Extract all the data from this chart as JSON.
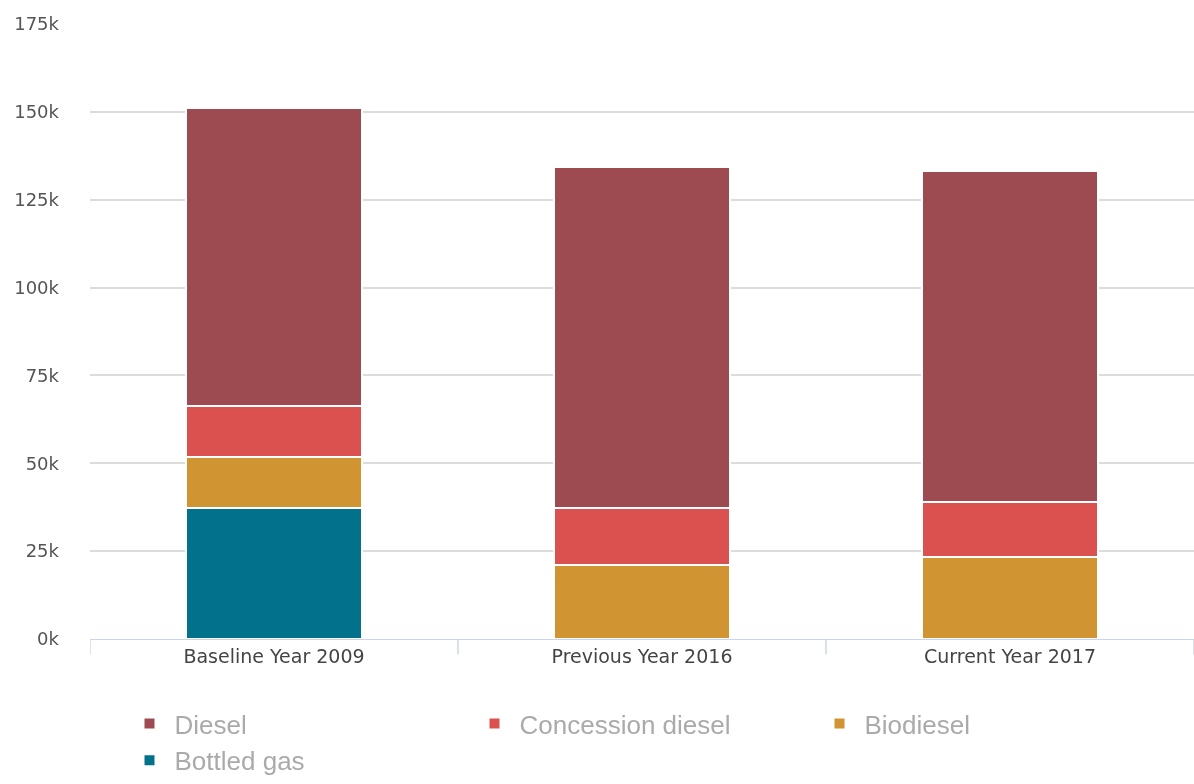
{
  "chart_data": {
    "type": "bar",
    "stacked": true,
    "categories": [
      "Baseline Year 2009",
      "Previous Year 2016",
      "Current Year 2017"
    ],
    "series": [
      {
        "name": "Bottled gas",
        "color": "#02718b",
        "values": [
          37400,
          null,
          null
        ]
      },
      {
        "name": "Biodiesel",
        "color": "#d09433",
        "values": [
          14500,
          21000,
          23200
        ]
      },
      {
        "name": "Concession diesel",
        "color": "#da5150",
        "values": [
          14400,
          16400,
          15800
        ]
      },
      {
        "name": "Diesel",
        "color": "#9e4a51",
        "values": [
          84900,
          96900,
          94200
        ]
      }
    ],
    "ylim": [
      0,
      175000
    ],
    "yticks": [
      {
        "value": 0,
        "label": "0k"
      },
      {
        "value": 25000,
        "label": "25k"
      },
      {
        "value": 50000,
        "label": "50k"
      },
      {
        "value": 75000,
        "label": "75k"
      },
      {
        "value": 100000,
        "label": "100k"
      },
      {
        "value": 125000,
        "label": "125k"
      },
      {
        "value": 150000,
        "label": "150k"
      },
      {
        "value": 175000,
        "label": "175k"
      }
    ],
    "grid": "y",
    "legend": "bottom"
  }
}
